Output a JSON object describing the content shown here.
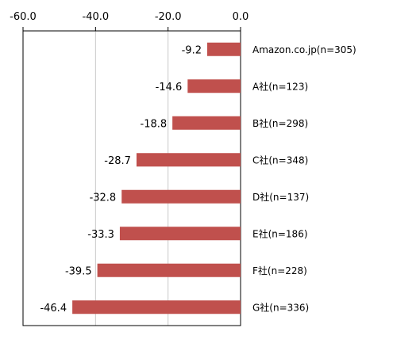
{
  "chart_data": {
    "type": "bar",
    "orientation": "horizontal",
    "categories": [
      "Amazon.co.jp(n=305)",
      "A社(n=123)",
      "B社(n=298)",
      "C社(n=348)",
      "D社(n=137)",
      "E社(n=186)",
      "F社(n=228)",
      "G社(n=336)"
    ],
    "values": [
      -9.2,
      -14.6,
      -18.8,
      -28.7,
      -32.8,
      -33.3,
      -39.5,
      -46.4
    ],
    "value_labels": [
      "-9.2",
      "-14.6",
      "-18.8",
      "-28.7",
      "-32.8",
      "-33.3",
      "-39.5",
      "-46.4"
    ],
    "xlim": [
      -60,
      0
    ],
    "x_ticks": [
      -60,
      -40,
      -20,
      0
    ],
    "x_tick_labels": [
      "-60.0",
      "-40.0",
      "-20.0",
      "0.0"
    ],
    "axis_position": "top",
    "grid": true,
    "bar_color": "#c0504d",
    "grid_color": "#c8c8c8"
  }
}
